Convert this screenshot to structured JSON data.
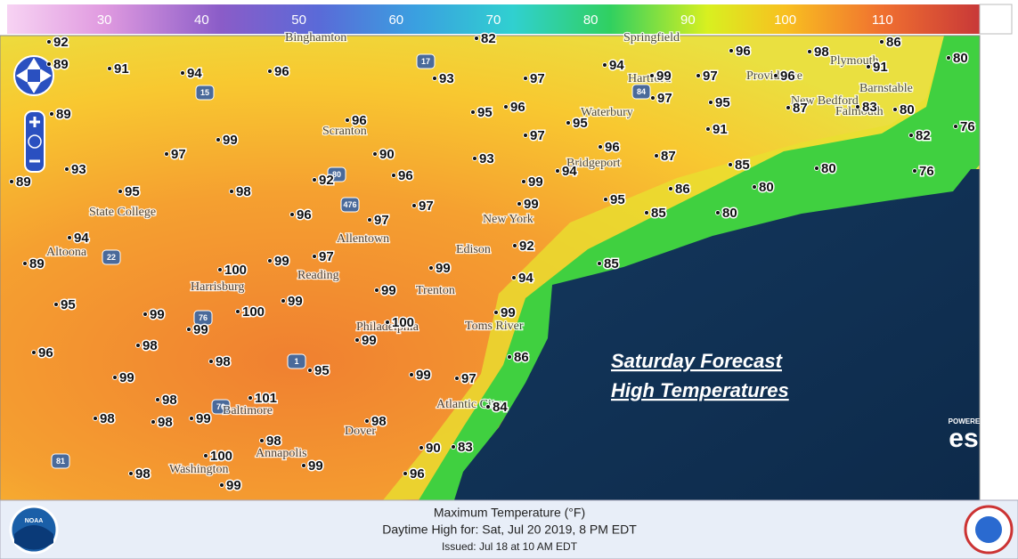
{
  "colorbar": {
    "range": [
      20,
      120
    ],
    "ticks": [
      30,
      40,
      50,
      60,
      70,
      80,
      90,
      100,
      110
    ]
  },
  "overlay": {
    "line1": "Saturday Forecast",
    "line2": "High Temperatures"
  },
  "attribution": {
    "powered_by": "POWERED BY",
    "brand": "esri"
  },
  "footer": {
    "line1": "Maximum Temperature (°F)",
    "line2": "Daytime High for: Sat, Jul 20 2019,   8 PM EDT",
    "line3": "Issued: Jul 18 at 10 AM EDT",
    "logo": "NOAA"
  },
  "places": [
    "Binghamton",
    "Springfield",
    "Plymouth",
    "Providence",
    "Hartford",
    "Barnstable",
    "New Bedford",
    "Falmouth",
    "Waterbury",
    "Scranton",
    "Bridgeport",
    "State College",
    "New York",
    "Allentown",
    "Altoona",
    "Edison",
    "Harrisburg",
    "Reading",
    "Trenton",
    "Philadelphia",
    "Toms River",
    "Atlantic City",
    "Baltimore",
    "Dover",
    "Annapolis",
    "Washington"
  ],
  "routes": [
    "17",
    "15",
    "84",
    "80",
    "476",
    "22",
    "76",
    "1",
    "70",
    "81"
  ],
  "temperatures": [
    92,
    89,
    91,
    94,
    96,
    93,
    82,
    97,
    94,
    99,
    97,
    96,
    96,
    98,
    86,
    91,
    80,
    89,
    96,
    95,
    96,
    97,
    95,
    97,
    95,
    87,
    83,
    80,
    91,
    82,
    76,
    99,
    97,
    90,
    93,
    96,
    87,
    85,
    80,
    76,
    93,
    89,
    92,
    96,
    94,
    99,
    86,
    80,
    95,
    98,
    97,
    99,
    95,
    85,
    80,
    96,
    97,
    94,
    92,
    89,
    100,
    99,
    97,
    99,
    85,
    94,
    99,
    95,
    100,
    99,
    99,
    99,
    99,
    100,
    99,
    98,
    96,
    98,
    95,
    86,
    99,
    99,
    97,
    98,
    101,
    84,
    98,
    98,
    99,
    98,
    98,
    90,
    83,
    100,
    99,
    98,
    96,
    99
  ]
}
